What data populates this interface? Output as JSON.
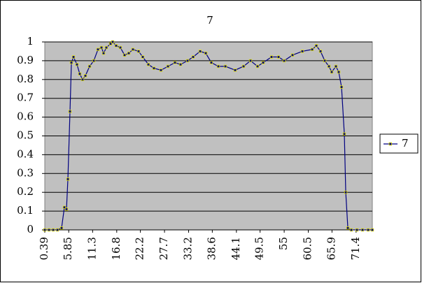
{
  "chart_data": {
    "type": "line",
    "title": "7",
    "x": [
      0.39,
      1.35,
      2.31,
      3.27,
      4.22,
      4.86,
      5.34,
      5.66,
      6.14,
      6.46,
      6.94,
      7.73,
      8.37,
      9.01,
      9.65,
      10.61,
      11.56,
      12.52,
      13.32,
      13.8,
      14.44,
      15.4,
      15.88,
      16.67,
      17.63,
      18.59,
      19.55,
      20.5,
      21.78,
      22.74,
      24.02,
      25.29,
      26.89,
      28.49,
      30.08,
      31.36,
      32.96,
      34.23,
      35.83,
      37.11,
      38.38,
      39.98,
      41.58,
      43.81,
      45.73,
      47.32,
      48.92,
      50.2,
      52.11,
      53.71,
      54.99,
      56.9,
      59.14,
      61.38,
      62.33,
      63.29,
      64.25,
      65.21,
      65.84,
      66.8,
      67.44,
      68.08,
      68.72,
      69.04,
      69.52,
      70.31,
      71.59,
      72.87,
      74.15,
      75.1
    ],
    "series": [
      {
        "name": "7",
        "color": "#000080",
        "marker_color": "#e6e600",
        "values": [
          0,
          0,
          0,
          0,
          0.01,
          0.12,
          0.11,
          0.27,
          0.63,
          0.89,
          0.92,
          0.88,
          0.83,
          0.8,
          0.82,
          0.87,
          0.9,
          0.96,
          0.97,
          0.94,
          0.97,
          0.99,
          1.0,
          0.98,
          0.97,
          0.93,
          0.94,
          0.96,
          0.95,
          0.92,
          0.88,
          0.86,
          0.85,
          0.87,
          0.89,
          0.88,
          0.9,
          0.92,
          0.95,
          0.94,
          0.89,
          0.87,
          0.87,
          0.85,
          0.87,
          0.9,
          0.87,
          0.89,
          0.92,
          0.92,
          0.9,
          0.93,
          0.95,
          0.96,
          0.98,
          0.95,
          0.9,
          0.87,
          0.84,
          0.87,
          0.84,
          0.76,
          0.51,
          0.2,
          0.01,
          0,
          0,
          0,
          0,
          0
        ]
      }
    ],
    "xlim": [
      0.39,
      75.1
    ],
    "xticks": [
      0.39,
      5.85,
      11.3,
      16.8,
      22.2,
      27.7,
      33.2,
      38.6,
      44.1,
      49.5,
      55,
      60.5,
      65.9,
      71.4
    ],
    "ylim": [
      0,
      1
    ],
    "yticks": [
      0,
      0.1,
      0.2,
      0.3,
      0.4,
      0.5,
      0.6,
      0.7,
      0.8,
      0.9,
      1
    ],
    "grid": true,
    "plot_background": "#c0c0c0",
    "legend": "right"
  }
}
